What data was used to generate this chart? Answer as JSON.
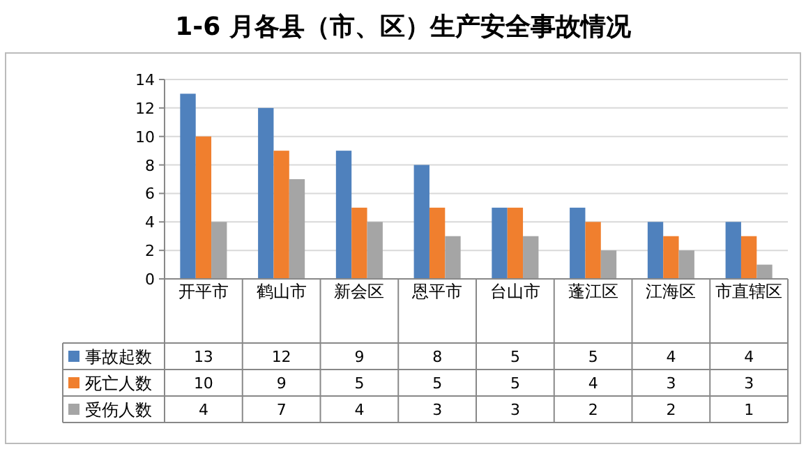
{
  "chart_data": {
    "type": "bar",
    "title": "1-6 月各县（市、区）生产安全事故情况",
    "categories": [
      "开平市",
      "鹤山市",
      "新会区",
      "恩平市",
      "台山市",
      "蓬江区",
      "江海区",
      "市直辖区"
    ],
    "series": [
      {
        "name": "事故起数",
        "color": "#4f81bd",
        "values": [
          13,
          12,
          9,
          8,
          5,
          5,
          4,
          4
        ]
      },
      {
        "name": "死亡人数",
        "color": "#f07f2e",
        "values": [
          10,
          9,
          5,
          5,
          5,
          4,
          3,
          3
        ]
      },
      {
        "name": "受伤人数",
        "color": "#a5a5a5",
        "values": [
          4,
          7,
          4,
          3,
          3,
          2,
          2,
          1
        ]
      }
    ],
    "ylim": [
      0,
      14
    ],
    "yticks": [
      0,
      2,
      4,
      6,
      8,
      10,
      12,
      14
    ],
    "grid": "y",
    "data_labels": true,
    "legend": "bottom"
  }
}
